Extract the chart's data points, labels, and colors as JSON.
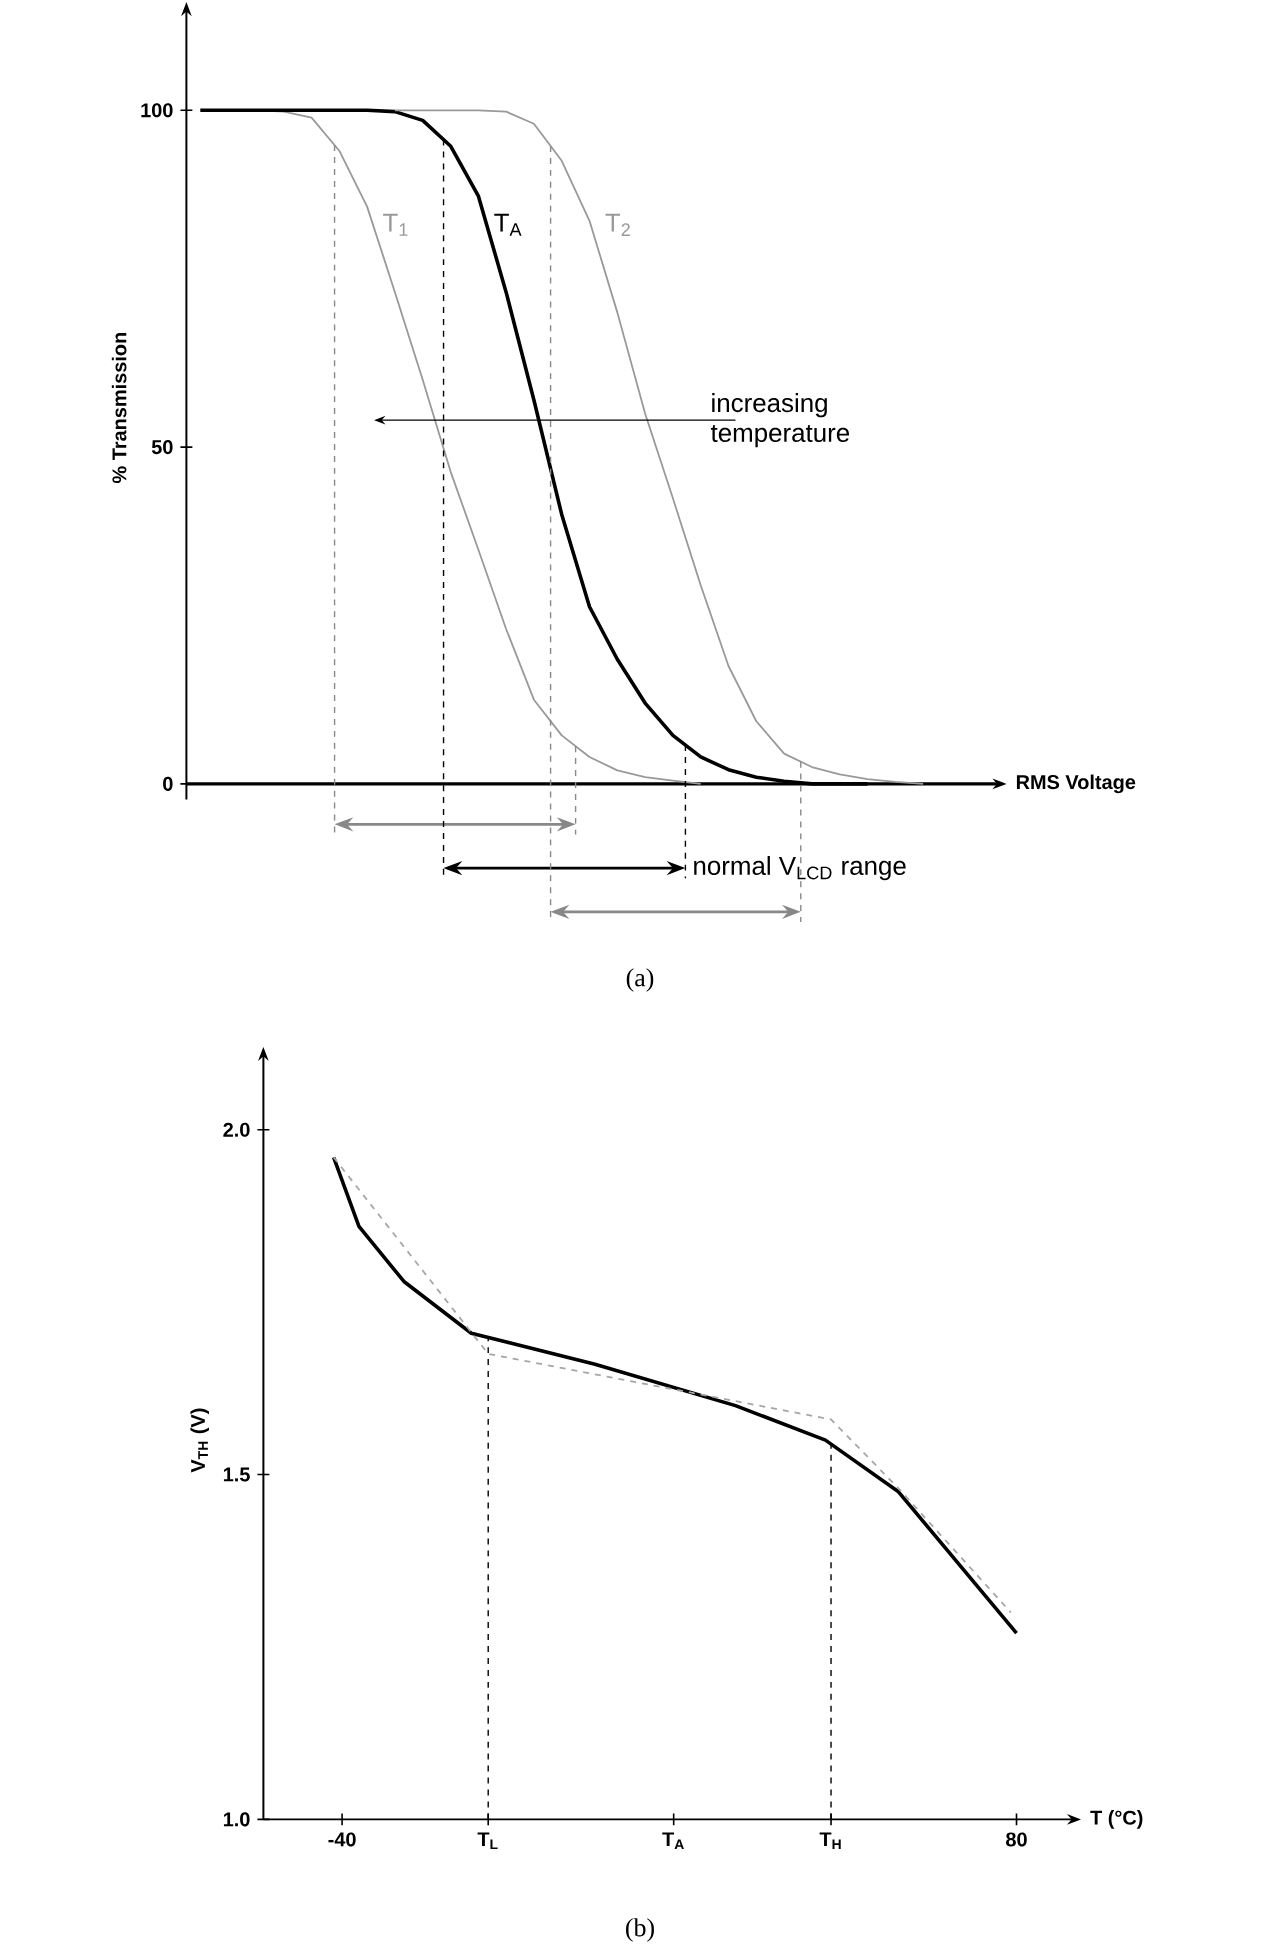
{
  "chart_data": [
    {
      "type": "line",
      "ylabel": "% Transmission",
      "xlabel": "RMS Voltage",
      "categories": [
        null,
        null,
        null,
        null,
        null,
        null,
        null,
        null,
        null,
        null,
        null,
        null,
        null,
        null,
        null,
        null,
        null,
        null,
        null,
        null,
        null,
        null,
        null,
        null,
        null,
        null,
        null,
        null,
        null
      ],
      "ylim": [
        -2.3,
        114
      ],
      "yticks": [
        0,
        50,
        100
      ],
      "tick_labels": "y",
      "series": [
        {
          "name": "T$_{1}$",
          "color": "#999999",
          "values": [
            null,
            null,
            100,
            99.8,
            98.9,
            94,
            85.7,
            73,
            60,
            46.4,
            34.8,
            23,
            12.5,
            7.2,
            4,
            2,
            1,
            0.5,
            0,
            null,
            null,
            null,
            null,
            null,
            null,
            null,
            null,
            null,
            null
          ]
        },
        {
          "name": "T$_{A}$",
          "color": "#000000",
          "values": [
            100,
            100,
            100,
            100,
            100,
            100,
            100,
            99.8,
            98.5,
            94.7,
            87.3,
            73,
            57,
            40,
            26.3,
            18.5,
            12,
            7.2,
            4,
            2.1,
            1,
            0.4,
            0,
            0,
            0,
            null,
            null,
            null,
            null
          ]
        },
        {
          "name": "T$_{2}$",
          "color": "#999999",
          "values": [
            null,
            null,
            null,
            null,
            null,
            null,
            null,
            100,
            100,
            100,
            100,
            99.8,
            98,
            92.5,
            83.6,
            70,
            55,
            42.4,
            29.5,
            17.5,
            9.3,
            4.5,
            2.5,
            1.4,
            0.7,
            0.3,
            0,
            null,
            null
          ]
        }
      ],
      "annotations": [
        "increasing temperature",
        "normal V$_{LCD}$ range",
        "(a)"
      ]
    },
    {
      "type": "line",
      "ylabel": "V$_{TH}$ (V)",
      "xlabel": "T (°C)",
      "xlim": [
        -54,
        89
      ],
      "ylim": [
        1.0,
        2.1
      ],
      "xticks": [
        -40,
        {
          "value": -14,
          "label": "T$_{L}$"
        },
        {
          "value": 19,
          "label": "T$_{A}$"
        },
        {
          "value": 47,
          "label": "T$_{H}$"
        },
        80
      ],
      "yticks": [
        {
          "value": 1.0,
          "label": "1.0"
        },
        {
          "value": 1.5,
          "label": "1.5"
        },
        {
          "value": 2.0,
          "label": "2.0"
        }
      ],
      "series": [
        {
          "color": "#000000",
          "line_style": "solid",
          "x": [
            -41.5,
            -37,
            -29,
            -17,
            5,
            30,
            46,
            59,
            80
          ],
          "values": [
            1.96,
            1.86,
            1.78,
            1.705,
            1.66,
            1.6,
            1.55,
            1.475,
            1.27
          ]
        },
        {
          "color": "#a6a6a6",
          "line_style": "dashed",
          "x": [
            -41.5,
            -14,
            47,
            59,
            79
          ],
          "values": [
            1.96,
            1.675,
            1.58,
            1.48,
            1.3
          ]
        }
      ],
      "ref_lines": [
        {
          "axis": "x",
          "value": -14,
          "color": "#000000",
          "line_style": "dashed"
        },
        {
          "axis": "x",
          "value": 47,
          "color": "#000000",
          "line_style": "dashed"
        }
      ],
      "annotations": [
        "(b)"
      ]
    }
  ]
}
